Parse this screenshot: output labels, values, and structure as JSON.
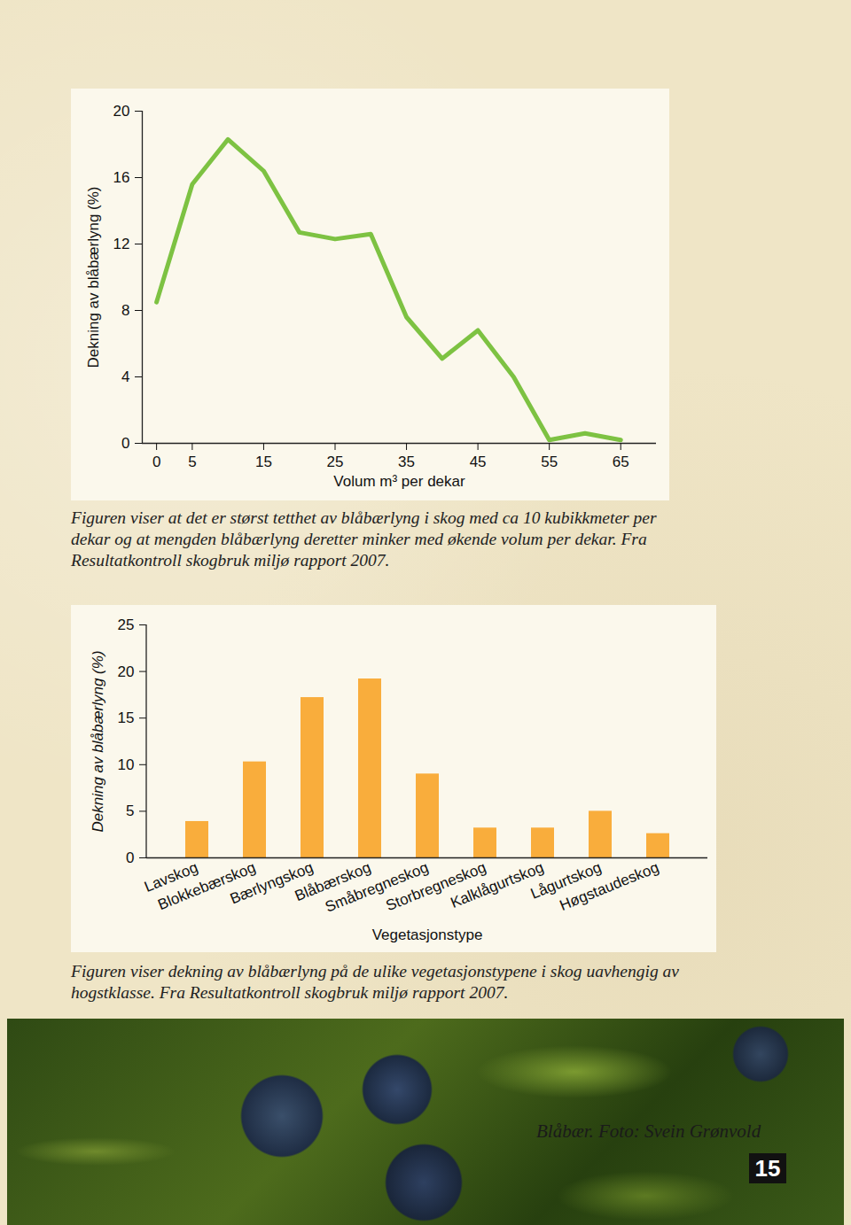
{
  "chart_data": [
    {
      "type": "line",
      "x_label": "Volum m³ per dekar",
      "y_label": "Dekning av blåbærlyng (%)",
      "x": [
        0,
        5,
        10,
        15,
        20,
        25,
        30,
        35,
        40,
        45,
        50,
        55,
        60,
        65
      ],
      "values": [
        8.5,
        15.6,
        18.3,
        16.4,
        12.7,
        12.3,
        12.6,
        7.6,
        5.1,
        6.8,
        4.0,
        0.2,
        0.6,
        0.2
      ],
      "color": "#7dc242",
      "xlim": [
        -2,
        70
      ],
      "xticks": [
        0,
        5,
        15,
        25,
        35,
        45,
        55,
        65
      ],
      "ylim": [
        0,
        20
      ],
      "yticks": [
        0,
        4,
        8,
        12,
        16,
        20
      ],
      "grid": false,
      "caption": "Figuren viser at det er størst tetthet av blåbærlyng i skog med ca 10 kubikkmeter per dekar og at mengden blåbærlyng deretter minker med økende volum per dekar. Fra Resultatkontroll skogbruk miljø rapport 2007."
    },
    {
      "type": "bar",
      "x_label": "Vegetasjonstype",
      "y_label": "Dekning av blåbærlyng (%)",
      "categories": [
        "Lavskog",
        "Blokkebærskog",
        "Bærlyngskog",
        "Blåbærskog",
        "Småbregneskog",
        "Storbregneskog",
        "Kalklågurtskog",
        "Lågurtskog",
        "Høgstaudeskog"
      ],
      "values": [
        3.9,
        10.3,
        17.2,
        19.2,
        9.0,
        3.2,
        3.2,
        5.0,
        2.6
      ],
      "color": "#f9ad3c",
      "ylim": [
        0,
        25
      ],
      "yticks": [
        0,
        5,
        10,
        15,
        20,
        25
      ],
      "grid": false,
      "caption": "Figuren viser dekning av blåbærlyng på de ulike vegetasjonstypene i skog uavhengig av hogstklasse. Fra Resultatkontroll skogbruk miljø rapport 2007."
    }
  ],
  "photo": {
    "caption": "Blåbær. Foto: Svein Grønvold"
  },
  "page_number": 15
}
